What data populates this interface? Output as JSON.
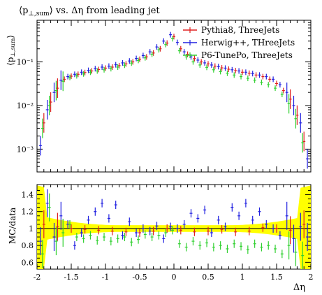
{
  "chart_data": [
    {
      "panel": "main",
      "type": "scatter",
      "title": "⟨p⊥,sum⟩ vs. Δη from leading jet",
      "title_parts": {
        "lhs": "⟨p",
        "sub": "⊥,sum",
        "rhs": "⟩ vs. Δη from leading jet"
      },
      "xlabel": "",
      "ylabel": "⟨p⊥,sum⟩",
      "ylabel_parts": {
        "main": "⟨p",
        "sub": "⊥,sum",
        "close": "⟩"
      },
      "xlim": [
        -2,
        2
      ],
      "ylim_log": [
        0.0003,
        0.9
      ],
      "yscale": "log",
      "yticks": [
        "10⁻³",
        "10⁻²",
        "10⁻¹"
      ],
      "legend_position": "top-right",
      "series": [
        {
          "name": "Pythia8, ThreeJets",
          "color": "#e02020",
          "x": [
            -1.9,
            -1.8,
            -1.7,
            -1.6,
            -1.5,
            -1.4,
            -1.3,
            -1.2,
            -1.1,
            -1.0,
            -0.9,
            -0.8,
            -0.7,
            -0.6,
            -0.5,
            -0.4,
            -0.3,
            -0.2,
            -0.1,
            0.0,
            0.1,
            0.2,
            0.3,
            0.4,
            0.5,
            0.6,
            0.7,
            0.8,
            0.9,
            1.0,
            1.1,
            1.2,
            1.3,
            1.4,
            1.5,
            1.6,
            1.7,
            1.8,
            1.9
          ],
          "y": [
            0.004,
            0.012,
            0.025,
            0.04,
            0.047,
            0.052,
            0.057,
            0.062,
            0.067,
            0.072,
            0.076,
            0.082,
            0.09,
            0.1,
            0.115,
            0.13,
            0.16,
            0.2,
            0.27,
            0.38,
            0.2,
            0.15,
            0.12,
            0.1,
            0.09,
            0.08,
            0.073,
            0.068,
            0.063,
            0.058,
            0.055,
            0.05,
            0.046,
            0.04,
            0.032,
            0.022,
            0.014,
            0.006,
            0.0015
          ]
        },
        {
          "name": "Herwig++, THreeJets",
          "color": "#2020e0",
          "x": [
            -1.95,
            -1.85,
            -1.75,
            -1.65,
            -1.55,
            -1.45,
            -1.35,
            -1.25,
            -1.15,
            -1.05,
            -0.95,
            -0.85,
            -0.75,
            -0.65,
            -0.55,
            -0.45,
            -0.35,
            -0.25,
            -0.15,
            -0.05,
            0.05,
            0.15,
            0.25,
            0.35,
            0.45,
            0.55,
            0.65,
            0.75,
            0.85,
            0.95,
            1.05,
            1.15,
            1.25,
            1.35,
            1.45,
            1.55,
            1.65,
            1.75,
            1.85,
            1.95
          ],
          "y": [
            0.0012,
            0.008,
            0.02,
            0.038,
            0.046,
            0.052,
            0.058,
            0.064,
            0.07,
            0.076,
            0.08,
            0.086,
            0.095,
            0.105,
            0.12,
            0.14,
            0.17,
            0.22,
            0.3,
            0.42,
            0.28,
            0.17,
            0.13,
            0.11,
            0.095,
            0.085,
            0.078,
            0.072,
            0.066,
            0.062,
            0.058,
            0.054,
            0.05,
            0.046,
            0.04,
            0.03,
            0.02,
            0.01,
            0.004,
            0.0006
          ]
        },
        {
          "name": "P6-TunePo, ThreeJets",
          "color": "#30d030",
          "x": [
            -1.92,
            -1.82,
            -1.72,
            -1.62,
            -1.52,
            -1.42,
            -1.32,
            -1.22,
            -1.12,
            -1.02,
            -0.92,
            -0.82,
            -0.72,
            -0.62,
            -0.52,
            -0.42,
            -0.32,
            -0.22,
            -0.12,
            -0.02,
            0.08,
            0.18,
            0.28,
            0.38,
            0.48,
            0.58,
            0.68,
            0.78,
            0.88,
            0.98,
            1.08,
            1.18,
            1.28,
            1.38,
            1.48,
            1.58,
            1.68,
            1.78,
            1.88
          ],
          "y": [
            0.003,
            0.01,
            0.022,
            0.036,
            0.044,
            0.048,
            0.053,
            0.058,
            0.062,
            0.066,
            0.07,
            0.076,
            0.084,
            0.094,
            0.108,
            0.124,
            0.15,
            0.19,
            0.25,
            0.34,
            0.18,
            0.13,
            0.1,
            0.085,
            0.075,
            0.066,
            0.06,
            0.055,
            0.05,
            0.046,
            0.042,
            0.038,
            0.034,
            0.03,
            0.025,
            0.018,
            0.011,
            0.005,
            0.0014
          ]
        }
      ]
    },
    {
      "panel": "ratio",
      "type": "scatter",
      "xlabel": "Δη",
      "ylabel": "MC/data",
      "xlim": [
        -2,
        2
      ],
      "ylim": [
        0.52,
        1.52
      ],
      "xticks": [
        "-2",
        "-1.5",
        "-1",
        "-0.5",
        "0",
        "0.5",
        "1",
        "1.5",
        "2"
      ],
      "yticks": [
        "0.6",
        "0.8",
        "1",
        "1.2",
        "1.4"
      ],
      "reference_line": 1,
      "uncertainty_band_color": "#ffff00",
      "series": [
        {
          "name": "Pythia8, ThreeJets",
          "color": "#e02020",
          "x": [
            -1.9,
            -1.7,
            -1.5,
            -1.3,
            -1.1,
            -0.9,
            -0.7,
            -0.5,
            -0.3,
            -0.1,
            0.1,
            0.3,
            0.5,
            0.7,
            0.9,
            1.1,
            1.3,
            1.5,
            1.7,
            1.9
          ],
          "y": [
            1.05,
            1.02,
            1.0,
            0.99,
            0.98,
            0.97,
            0.96,
            0.95,
            0.97,
            1.0,
            0.98,
            0.96,
            0.97,
            0.99,
            0.96,
            0.97,
            1.01,
            1.0,
            0.98,
            1.05
          ]
        },
        {
          "name": "Herwig++, THreeJets",
          "color": "#2020e0",
          "x": [
            -1.95,
            -1.85,
            -1.75,
            -1.65,
            -1.55,
            -1.45,
            -1.35,
            -1.25,
            -1.15,
            -1.05,
            -0.95,
            -0.85,
            -0.75,
            -0.65,
            -0.55,
            -0.45,
            -0.35,
            -0.25,
            -0.15,
            -0.05,
            0.05,
            0.15,
            0.25,
            0.35,
            0.45,
            0.55,
            0.65,
            0.75,
            0.85,
            0.95,
            1.05,
            1.15,
            1.25,
            1.35,
            1.45,
            1.55,
            1.65,
            1.75,
            1.85,
            1.95
          ],
          "y": [
            0.85,
            1.3,
            0.9,
            1.15,
            1.05,
            0.8,
            0.95,
            1.1,
            1.2,
            1.3,
            1.12,
            1.28,
            0.92,
            1.08,
            0.95,
            1.0,
            0.97,
            1.03,
            0.88,
            1.02,
            1.0,
            1.05,
            1.18,
            1.12,
            1.22,
            0.95,
            1.1,
            1.02,
            1.25,
            1.15,
            1.3,
            1.1,
            1.2,
            1.05,
            1.0,
            0.92,
            1.15,
            0.88,
            1.02,
            0.9
          ]
        },
        {
          "name": "P6-TunePo, ThreeJets",
          "color": "#30d030",
          "x": [
            -1.92,
            -1.82,
            -1.72,
            -1.62,
            -1.52,
            -1.42,
            -1.32,
            -1.22,
            -1.12,
            -1.02,
            -0.92,
            -0.82,
            -0.72,
            -0.62,
            -0.52,
            -0.42,
            -0.32,
            -0.22,
            -0.12,
            -0.02,
            0.08,
            0.18,
            0.28,
            0.38,
            0.48,
            0.58,
            0.68,
            0.78,
            0.88,
            0.98,
            1.08,
            1.18,
            1.28,
            1.38,
            1.48,
            1.58,
            1.68,
            1.78,
            1.88
          ],
          "y": [
            0.7,
            1.25,
            0.85,
            0.95,
            1.05,
            0.9,
            0.88,
            0.92,
            0.86,
            0.9,
            0.85,
            0.88,
            0.9,
            0.84,
            0.87,
            0.93,
            0.9,
            0.92,
            0.95,
            0.98,
            0.82,
            0.78,
            0.85,
            0.8,
            0.83,
            0.78,
            0.8,
            0.76,
            0.82,
            0.79,
            0.75,
            0.82,
            0.78,
            0.8,
            0.76,
            0.7,
            0.8,
            0.72,
            0.68
          ]
        }
      ]
    }
  ]
}
